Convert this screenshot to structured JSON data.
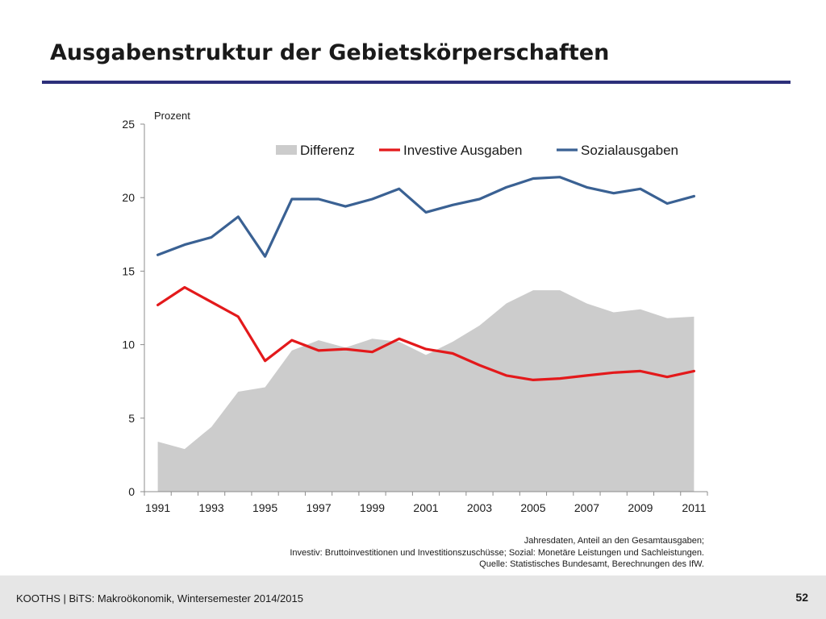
{
  "slide": {
    "title": "Ausgabenstruktur der Gebietskörperschaften",
    "footer": "KOOTHS | BiTS: Makroökonomik, Wintersemester 2014/2015",
    "page_number": "52",
    "rule_color": "#2c2f7a"
  },
  "source_note": {
    "line1": "Jahresdaten, Anteil an den Gesamtausgaben;",
    "line2": "Investiv: Bruttoinvestitionen und Investitionszuschüsse; Sozial: Monetäre Leistungen und Sachleistungen.",
    "line3": "Quelle: Statistisches Bundesamt, Berechnungen des IfW."
  },
  "chart_data": {
    "type": "line",
    "title": "",
    "ylabel": "Prozent",
    "xlabel": "",
    "ylim": [
      0,
      25
    ],
    "yticks": [
      0,
      5,
      10,
      15,
      20,
      25
    ],
    "xtick_labels": [
      "1991",
      "1993",
      "1995",
      "1997",
      "1999",
      "2001",
      "2003",
      "2005",
      "2007",
      "2009",
      "2011"
    ],
    "x": [
      1991,
      1992,
      1993,
      1994,
      1995,
      1996,
      1997,
      1998,
      1999,
      2000,
      2001,
      2002,
      2003,
      2004,
      2005,
      2006,
      2007,
      2008,
      2009,
      2010,
      2011
    ],
    "legend_position": "top",
    "grid": false,
    "series": [
      {
        "name": "Differenz",
        "type": "area",
        "color": "#cccccc",
        "values": [
          3.4,
          2.9,
          4.4,
          6.8,
          7.1,
          9.6,
          10.3,
          9.8,
          10.4,
          10.2,
          9.3,
          10.2,
          11.3,
          12.8,
          13.7,
          13.7,
          12.8,
          12.2,
          12.4,
          11.8,
          11.9
        ]
      },
      {
        "name": "Investive Ausgaben",
        "type": "line",
        "color": "#e3191b",
        "values": [
          12.7,
          13.9,
          12.9,
          11.9,
          8.9,
          10.3,
          9.6,
          9.7,
          9.5,
          10.4,
          9.7,
          9.4,
          8.6,
          7.9,
          7.6,
          7.7,
          7.9,
          8.1,
          8.2,
          7.8,
          8.2
        ]
      },
      {
        "name": "Sozialausgaben",
        "type": "line",
        "color": "#3a6193",
        "values": [
          16.1,
          16.8,
          17.3,
          18.7,
          16.0,
          19.9,
          19.9,
          19.4,
          19.9,
          20.6,
          19.0,
          19.5,
          19.9,
          20.7,
          21.3,
          21.4,
          20.7,
          20.3,
          20.6,
          19.6,
          20.1
        ]
      }
    ]
  }
}
